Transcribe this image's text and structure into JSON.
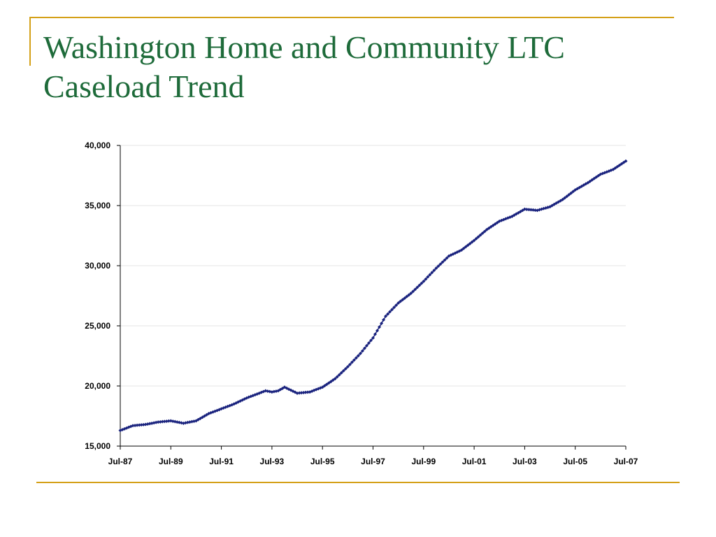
{
  "slide": {
    "title_line1": "Washington Home and Community LTC",
    "title_line2": "Caseload Trend",
    "accent_color": "#d4a017",
    "title_color": "#1e6b3a"
  },
  "chart_data": {
    "type": "line",
    "title": "",
    "xlabel": "",
    "ylabel": "",
    "ylim": [
      15000,
      40000
    ],
    "yticks": [
      15000,
      20000,
      25000,
      30000,
      35000,
      40000
    ],
    "ytick_labels": [
      "15,000",
      "20,000",
      "25,000",
      "30,000",
      "35,000",
      "40,000"
    ],
    "xtick_labels": [
      "Jul-87",
      "Jul-89",
      "Jul-91",
      "Jul-93",
      "Jul-95",
      "Jul-97",
      "Jul-99",
      "Jul-01",
      "Jul-03",
      "Jul-05",
      "Jul-07"
    ],
    "xrange_years": [
      1987.5,
      2007.5
    ],
    "marker": "diamond",
    "series_color": "#1a237e",
    "series": [
      {
        "name": "",
        "x": [
          1987.5,
          1988.0,
          1988.5,
          1989.0,
          1989.5,
          1990.0,
          1990.5,
          1991.0,
          1991.5,
          1992.0,
          1992.5,
          1993.0,
          1993.25,
          1993.5,
          1993.75,
          1994.0,
          1994.5,
          1995.0,
          1995.5,
          1996.0,
          1996.5,
          1997.0,
          1997.5,
          1998.0,
          1998.5,
          1999.0,
          1999.5,
          2000.0,
          2000.5,
          2001.0,
          2001.5,
          2002.0,
          2002.5,
          2003.0,
          2003.5,
          2004.0,
          2004.5,
          2005.0,
          2005.5,
          2006.0,
          2006.5,
          2007.0,
          2007.5
        ],
        "y": [
          16300,
          16700,
          16800,
          17000,
          17100,
          16900,
          17100,
          17700,
          18100,
          18500,
          19000,
          19400,
          19600,
          19500,
          19600,
          19900,
          19400,
          19500,
          19900,
          20600,
          21600,
          22700,
          24000,
          25800,
          26900,
          27700,
          28700,
          29800,
          30800,
          31300,
          32100,
          33000,
          33700,
          34100,
          34700,
          34600,
          34900,
          35500,
          36300,
          36900,
          37600,
          38000,
          38700
        ]
      }
    ]
  }
}
